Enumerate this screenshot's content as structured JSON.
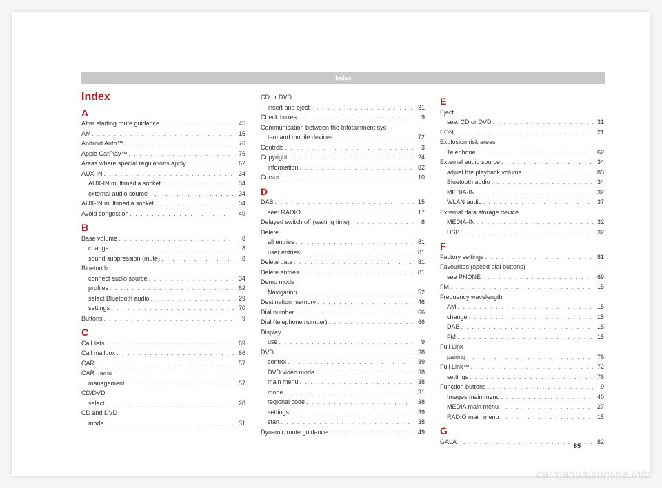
{
  "header": "Index",
  "title": "Index",
  "pagenum": "85",
  "watermark": "carmanualsonline.info",
  "columns": [
    {
      "blocks": [
        {
          "letter": "A",
          "items": [
            {
              "t": "After starting route guidance",
              "p": "45"
            },
            {
              "t": "AM",
              "p": "15"
            },
            {
              "t": "Android Auto™",
              "p": "76"
            },
            {
              "t": "Apple CarPlay™",
              "p": "76"
            },
            {
              "t": "Areas where special regulations apply",
              "p": "62"
            },
            {
              "t": "AUX-IN",
              "p": "34"
            },
            {
              "t": "AUX-IN multimedia socket",
              "p": "34",
              "sub": true
            },
            {
              "t": "external audio source",
              "p": "34",
              "sub": true
            },
            {
              "t": "AUX-IN multimedia socket",
              "p": "34"
            },
            {
              "t": "Avoid congestion",
              "p": "49"
            }
          ]
        },
        {
          "letter": "B",
          "items": [
            {
              "t": "Base volume",
              "p": "8"
            },
            {
              "t": "change",
              "p": "8",
              "sub": true
            },
            {
              "t": "sound suppression (mute)",
              "p": "8",
              "sub": true
            },
            {
              "t": "Bluetooth"
            },
            {
              "t": "connect audio source",
              "p": "34",
              "sub": true
            },
            {
              "t": "profiles",
              "p": "62",
              "sub": true
            },
            {
              "t": "select Bluetooth audio",
              "p": "29",
              "sub": true
            },
            {
              "t": "settings",
              "p": "70",
              "sub": true
            },
            {
              "t": "Buttons",
              "p": "9"
            }
          ]
        },
        {
          "letter": "C",
          "items": [
            {
              "t": "Call lists",
              "p": "69"
            },
            {
              "t": "Call mailbox",
              "p": "66"
            },
            {
              "t": "CAR",
              "p": "57"
            },
            {
              "t": "CAR menu"
            },
            {
              "t": "management",
              "p": "57",
              "sub": true
            },
            {
              "t": "CD/DVD"
            },
            {
              "t": "select",
              "p": "28",
              "sub": true
            },
            {
              "t": "CD and DVD"
            },
            {
              "t": "mode",
              "p": "31",
              "sub": true
            }
          ]
        }
      ]
    },
    {
      "blocks": [
        {
          "items": [
            {
              "t": "CD or DVD"
            },
            {
              "t": "insert and eject",
              "p": "31",
              "sub": true
            },
            {
              "t": "Check boxes",
              "p": "9"
            },
            {
              "t": "Communication between the Infotainment sys-"
            },
            {
              "t": "tem and mobile devices",
              "p": "72",
              "sub": true
            },
            {
              "t": "Controls",
              "p": "3"
            },
            {
              "t": "Copyright",
              "p": "24"
            },
            {
              "t": "information",
              "p": "82",
              "sub": true
            },
            {
              "t": "Cursor",
              "p": "10"
            }
          ]
        },
        {
          "letter": "D",
          "items": [
            {
              "t": "DAB",
              "p": "15"
            },
            {
              "t": "see: RADIO",
              "p": "17",
              "sub": true
            },
            {
              "t": "Delayed switch off (waiting time)",
              "p": "8"
            },
            {
              "t": "Delete"
            },
            {
              "t": "all entries",
              "p": "81",
              "sub": true
            },
            {
              "t": "user entries",
              "p": "81",
              "sub": true
            },
            {
              "t": "Delete data",
              "p": "81"
            },
            {
              "t": "Delete entries",
              "p": "81"
            },
            {
              "t": "Demo mode"
            },
            {
              "t": "Navigation",
              "p": "52",
              "sub": true
            },
            {
              "t": "Destination memory",
              "p": "46"
            },
            {
              "t": "Dial number",
              "p": "66"
            },
            {
              "t": "Dial (telephone number)",
              "p": "66"
            },
            {
              "t": "Display"
            },
            {
              "t": "use",
              "p": "9",
              "sub": true
            },
            {
              "t": "DVD",
              "p": "38"
            },
            {
              "t": "control",
              "p": "39",
              "sub": true
            },
            {
              "t": "DVD video mode",
              "p": "38",
              "sub": true
            },
            {
              "t": "main menu",
              "p": "38",
              "sub": true
            },
            {
              "t": "mode",
              "p": "31",
              "sub": true
            },
            {
              "t": "regional code",
              "p": "38",
              "sub": true
            },
            {
              "t": "settings",
              "p": "39",
              "sub": true
            },
            {
              "t": "start",
              "p": "38",
              "sub": true
            },
            {
              "t": "Dynamic route guidance",
              "p": "49"
            }
          ]
        }
      ]
    },
    {
      "blocks": [
        {
          "letter": "E",
          "items": [
            {
              "t": "Eject"
            },
            {
              "t": "see: CD or DVD",
              "p": "31",
              "sub": true
            },
            {
              "t": "EON",
              "p": "21"
            },
            {
              "t": "Explosion risk areas"
            },
            {
              "t": "Telephone",
              "p": "62",
              "sub": true
            },
            {
              "t": "External audio source",
              "p": "34"
            },
            {
              "t": "adjust the playback volume",
              "p": "83",
              "sub": true
            },
            {
              "t": "Bluetooth audio",
              "p": "34",
              "sub": true
            },
            {
              "t": "MEDIA-IN",
              "p": "32",
              "sub": true
            },
            {
              "t": "WLAN audio",
              "p": "37",
              "sub": true
            },
            {
              "t": "External data storage device"
            },
            {
              "t": "MEDIA-IN",
              "p": "32",
              "sub": true
            },
            {
              "t": "USB",
              "p": "32",
              "sub": true
            }
          ]
        },
        {
          "letter": "F",
          "items": [
            {
              "t": "Factory settings",
              "p": "81"
            },
            {
              "t": "Favourites (speed dial buttons)"
            },
            {
              "t": "see PHONE",
              "p": "69",
              "sub": true
            },
            {
              "t": "FM",
              "p": "15"
            },
            {
              "t": "Frequency wavelength"
            },
            {
              "t": "AM",
              "p": "15",
              "sub": true
            },
            {
              "t": "change",
              "p": "15",
              "sub": true
            },
            {
              "t": "DAB",
              "p": "15",
              "sub": true
            },
            {
              "t": "FM",
              "p": "15",
              "sub": true
            },
            {
              "t": "Full Link"
            },
            {
              "t": "pairing",
              "p": "76",
              "sub": true
            },
            {
              "t": "Full Link™",
              "p": "72"
            },
            {
              "t": "settings",
              "p": "76",
              "sub": true
            },
            {
              "t": "Function buttons",
              "p": "9"
            },
            {
              "t": "Images main menu",
              "p": "40",
              "sub": true
            },
            {
              "t": "MEDIA main menu",
              "p": "27",
              "sub": true
            },
            {
              "t": "RADIO main menu",
              "p": "15",
              "sub": true
            }
          ]
        },
        {
          "letter": "G",
          "items": [
            {
              "t": "GALA",
              "p": "82"
            }
          ]
        }
      ]
    }
  ]
}
